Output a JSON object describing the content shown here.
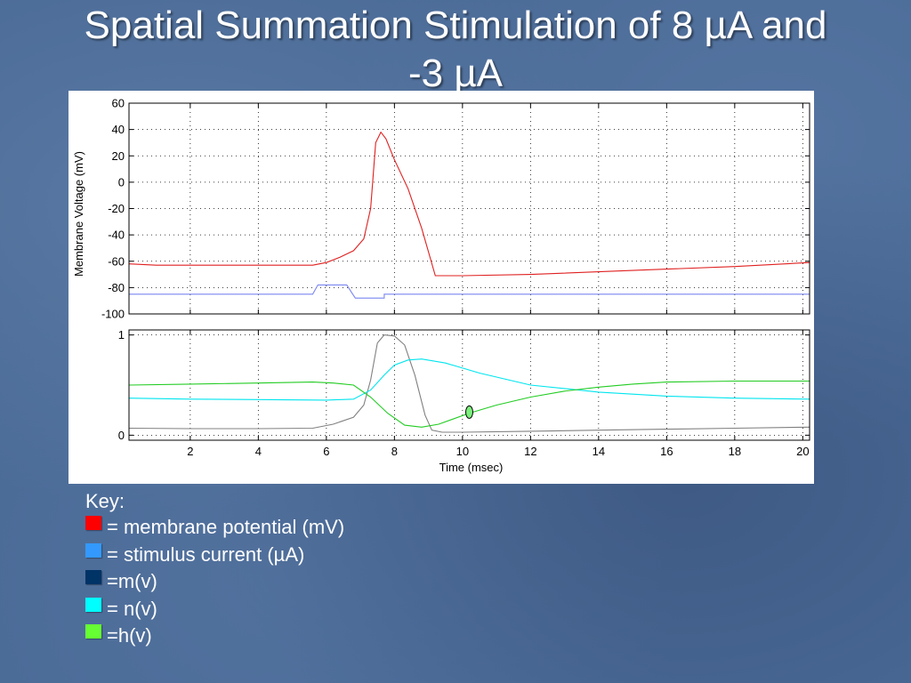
{
  "title": {
    "line1": "Spatial Summation Stimulation of 8 µA and",
    "line2": "-3 µA"
  },
  "chart_data": [
    {
      "type": "line",
      "title": "",
      "xlabel": "",
      "ylabel": "Membrane Voltage (mV)",
      "xlim": [
        0.2,
        20.2
      ],
      "ylim": [
        -100,
        60
      ],
      "yticks": [
        "60",
        "40",
        "20",
        "0",
        "-20",
        "-40",
        "-60",
        "-80",
        "-100"
      ],
      "grid": true,
      "series": [
        {
          "color": "#e02020",
          "x": [
            0.2,
            1,
            2,
            3,
            4,
            5,
            5.6,
            6.0,
            6.4,
            6.8,
            7.1,
            7.3,
            7.45,
            7.6,
            7.75,
            8.0,
            8.4,
            8.8,
            9.2,
            10,
            12,
            14,
            16,
            18,
            20.2
          ],
          "y": [
            -62,
            -63,
            -63,
            -63,
            -63,
            -63,
            -63,
            -61,
            -57,
            -52,
            -43,
            -20,
            30,
            38,
            33,
            17,
            -5,
            -35,
            -71,
            -71,
            -70,
            -68,
            -66,
            -64,
            -61
          ]
        },
        {
          "color": "#7a86f0",
          "x": [
            0.2,
            5.6,
            5.6,
            5.75,
            6.6,
            6.75,
            6.85,
            7.7,
            7.7,
            20.2
          ],
          "y": [
            -85,
            -85,
            -85,
            -78,
            -78,
            -84,
            -88,
            -88,
            -85,
            -85
          ]
        }
      ]
    },
    {
      "type": "line",
      "title": "",
      "xlabel": "Time (msec)",
      "ylabel": "",
      "xlim": [
        0.2,
        20.2
      ],
      "ylim": [
        -0.05,
        1.05
      ],
      "xticks": [
        "2",
        "4",
        "6",
        "8",
        "10",
        "12",
        "14",
        "16",
        "18",
        "20"
      ],
      "yticks": [
        "1",
        "0"
      ],
      "grid": true,
      "series": [
        {
          "color": "#808080",
          "x": [
            0.2,
            2,
            4,
            5.6,
            6.2,
            6.8,
            7.1,
            7.3,
            7.5,
            7.7,
            8.0,
            8.3,
            8.6,
            8.9,
            9.1,
            9.4,
            10,
            12,
            14,
            16,
            18,
            20.2
          ],
          "y": [
            0.07,
            0.065,
            0.065,
            0.07,
            0.11,
            0.18,
            0.3,
            0.55,
            0.92,
            1.0,
            0.99,
            0.9,
            0.6,
            0.2,
            0.05,
            0.03,
            0.03,
            0.04,
            0.05,
            0.06,
            0.07,
            0.08
          ]
        },
        {
          "color": "#00e5ee",
          "x": [
            0.2,
            2,
            4,
            6,
            6.8,
            7.3,
            7.7,
            8.0,
            8.4,
            8.8,
            9.5,
            10.5,
            12,
            14,
            16,
            18,
            20.2
          ],
          "y": [
            0.37,
            0.36,
            0.355,
            0.35,
            0.36,
            0.45,
            0.6,
            0.7,
            0.75,
            0.76,
            0.72,
            0.62,
            0.5,
            0.43,
            0.39,
            0.37,
            0.36
          ]
        },
        {
          "color": "#22cc22",
          "x": [
            0.2,
            2,
            4,
            5.6,
            6.2,
            6.8,
            7.3,
            7.8,
            8.3,
            8.8,
            9.3,
            10.2,
            11,
            12,
            13,
            14,
            15,
            16,
            18,
            20.2
          ],
          "y": [
            0.5,
            0.51,
            0.52,
            0.53,
            0.52,
            0.5,
            0.38,
            0.22,
            0.1,
            0.08,
            0.11,
            0.22,
            0.3,
            0.38,
            0.44,
            0.48,
            0.51,
            0.53,
            0.54,
            0.54
          ]
        }
      ],
      "marker": {
        "x": 10.2,
        "y": 0.23,
        "color": "#7cf07c"
      }
    }
  ],
  "key": {
    "title": "Key:",
    "items": [
      {
        "color": "#ff0000",
        "label": "= membrane potential (mV)"
      },
      {
        "color": "#3399ff",
        "label": "= stimulus current (µA)"
      },
      {
        "color": "#003366",
        "label": "=m(v)"
      },
      {
        "color": "#00ffff",
        "label": "= n(v)"
      },
      {
        "color": "#66ff33",
        "label": "=h(v)"
      }
    ]
  }
}
